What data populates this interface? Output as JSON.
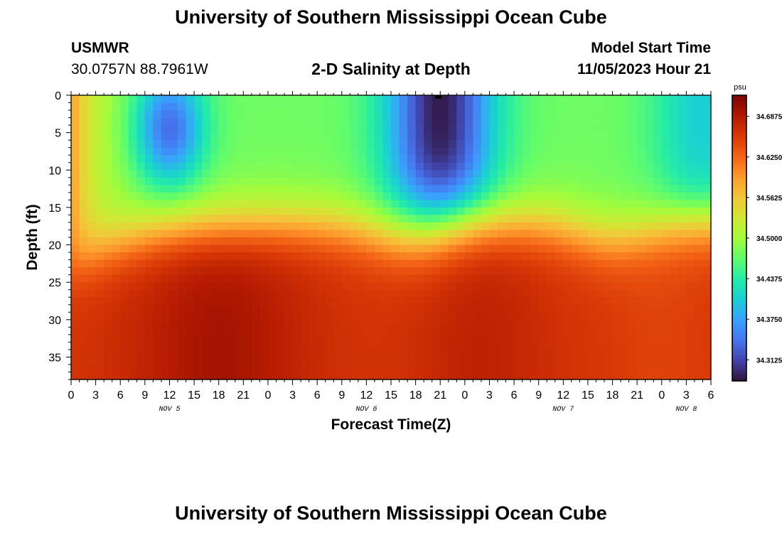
{
  "page": {
    "title": "University of Southern Mississippi Ocean Cube",
    "title_repeat": "University of Southern Mississippi Ocean Cube",
    "station": "USMWR",
    "coords": "30.0757N  88.7961W",
    "plot_title": "2-D Salinity at Depth",
    "model_start_label": "Model Start Time",
    "model_start_value": "11/05/2023 Hour 21"
  },
  "chart_data": {
    "type": "heatmap",
    "title": "2-D Salinity at Depth",
    "xlabel": "Forecast Time(Z)",
    "ylabel": "Depth (ft)",
    "colorbar_unit": "psu",
    "x_range_hours": [
      0,
      78
    ],
    "y_range_ft": [
      0,
      38
    ],
    "x_tick_labels": [
      "0",
      "3",
      "6",
      "9",
      "12",
      "15",
      "18",
      "21",
      "0",
      "3",
      "6",
      "9",
      "12",
      "15",
      "18",
      "21",
      "0",
      "3",
      "6",
      "9",
      "12",
      "15",
      "18",
      "21",
      "0",
      "3",
      "6"
    ],
    "y_ticks": [
      0,
      5,
      10,
      15,
      20,
      25,
      30,
      35
    ],
    "y_tick_labels": [
      "0",
      "5",
      "10",
      "15",
      "20",
      "25",
      "30",
      "35"
    ],
    "day_labels": [
      {
        "hour": 12,
        "label": "NOV 5"
      },
      {
        "hour": 36,
        "label": "NOV 6"
      },
      {
        "hour": 60,
        "label": "NOV 7"
      },
      {
        "hour": 75,
        "label": "NOV 8"
      }
    ],
    "colorbar_min": 34.28,
    "colorbar_max": 34.72,
    "colorbar_labels": [
      "34.6875",
      "34.6250",
      "34.5625",
      "34.5000",
      "34.4375",
      "34.3750",
      "34.3125"
    ],
    "colorbar_values": [
      34.6875,
      34.625,
      34.5625,
      34.5,
      34.4375,
      34.375,
      34.3125
    ],
    "colors": [
      "#30123b",
      "#4145ab",
      "#4675ed",
      "#39a2fc",
      "#1bcfd4",
      "#24eca6",
      "#61fc6c",
      "#a4fc3b",
      "#d1e834",
      "#f3c63a",
      "#fe9b2d",
      "#f36315",
      "#d93806",
      "#b11901",
      "#7a0402"
    ]
  }
}
